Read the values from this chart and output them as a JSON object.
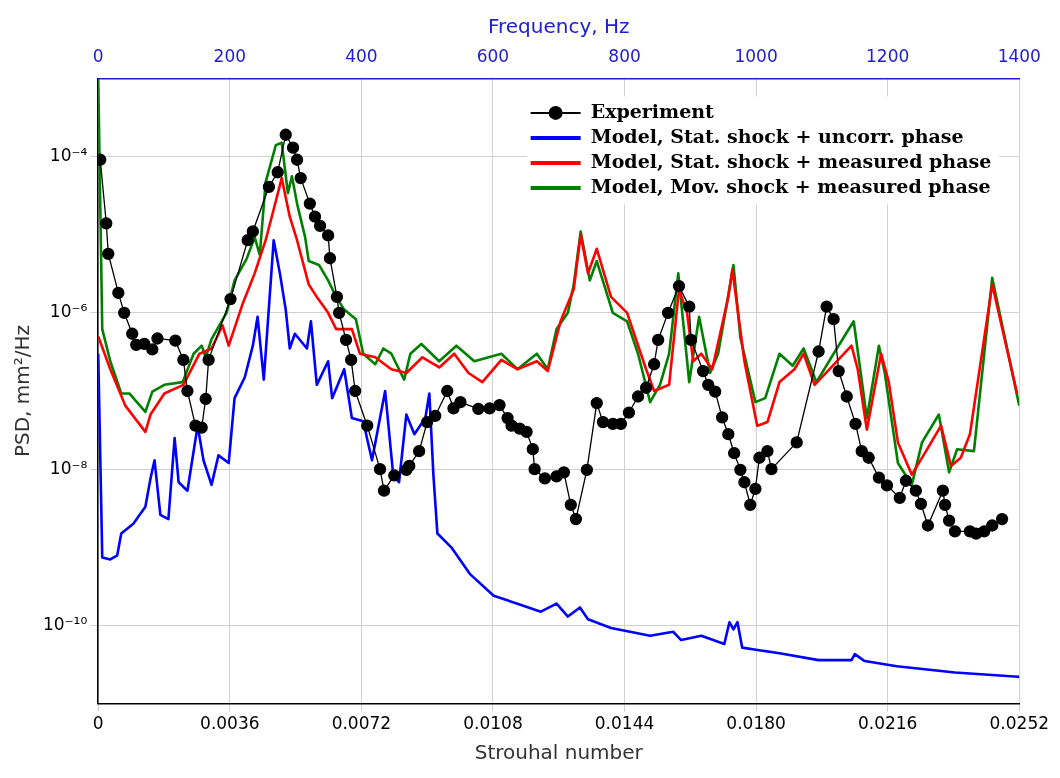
{
  "chart_data": {
    "type": "line",
    "xlabel": "Strouhal number",
    "ylabel": "PSD, mm²/Hz",
    "x2label": "Frequency, Hz",
    "xlim": [
      0,
      0.0252
    ],
    "xticks": [
      0,
      0.0036,
      0.0072,
      0.0108,
      0.0144,
      {
        "value": 0.018,
        "label": "0.0180"
      },
      0.0216,
      0.0252
    ],
    "x2lim": [
      0,
      1400
    ],
    "x2ticks": [
      0,
      200,
      400,
      600,
      800,
      1000,
      1200,
      1400
    ],
    "ylim": [
      1e-11,
      0.001
    ],
    "yticks": [
      {
        "value": 1e-10,
        "label": "10⁻¹⁰"
      },
      {
        "value": 1e-08,
        "label": "10⁻⁸"
      },
      {
        "value": 1e-06,
        "label": "10⁻⁶"
      },
      {
        "value": 0.0001,
        "label": "10⁻⁴"
      }
    ],
    "log": "y",
    "grid": true,
    "legend": "top right",
    "line_style": "solid",
    "series": [
      {
        "name": "Experiment",
        "color": "#000000",
        "marker": "circle",
        "x": [
          5.5e-05,
          0.00022,
          0.000275,
          0.00055,
          0.00071,
          0.00093,
          0.00104,
          0.00126,
          0.00148,
          0.00162,
          0.00211,
          0.00233,
          0.00244,
          0.00266,
          0.00283,
          0.00294,
          0.00302,
          0.00362,
          0.00409,
          0.00423,
          0.00467,
          0.00491,
          0.00513,
          0.00533,
          0.00544,
          0.00554,
          0.00579,
          0.00593,
          0.00607,
          0.00629,
          0.00634,
          0.00653,
          0.00659,
          0.00678,
          0.00692,
          0.00703,
          0.00736,
          0.00771,
          0.00782,
          0.0081,
          0.00843,
          0.00851,
          0.00878,
          0.009,
          0.00922,
          0.00955,
          0.00972,
          0.00991,
          0.0104,
          0.01071,
          0.01098,
          0.0112,
          0.01131,
          0.01153,
          0.01172,
          0.01189,
          0.01194,
          0.01222,
          0.01254,
          0.01274,
          0.01293,
          0.01307,
          0.01337,
          0.01364,
          0.01381,
          0.01408,
          0.0143,
          0.01452,
          0.01477,
          0.01499,
          0.01521,
          0.01532,
          0.01559,
          0.01589,
          0.01617,
          0.01622,
          0.01655,
          0.01669,
          0.01688,
          0.01707,
          0.01724,
          0.0174,
          0.01757,
          0.01768,
          0.01784,
          0.01798,
          0.01809,
          0.01831,
          0.01842,
          0.01911,
          0.01971,
          0.01993,
          0.02012,
          0.02026,
          0.02048,
          0.02072,
          0.02089,
          0.02108,
          0.02136,
          0.02158,
          0.02193,
          0.0221,
          0.02237,
          0.02251,
          0.0227,
          0.02311,
          0.02317,
          0.02328,
          0.02344,
          0.02385,
          0.02402,
          0.02424,
          0.02446,
          0.02473
        ],
        "values": [
          9.1e-05,
          1.4e-05,
          5.7e-06,
          1.8e-06,
          1e-06,
          5.4e-07,
          3.9e-07,
          4e-07,
          3.4e-07,
          4.7e-07,
          4.4e-07,
          2.5e-07,
          1e-07,
          3.6e-08,
          3.4e-08,
          7.9e-08,
          2.5e-07,
          1.5e-06,
          8.5e-06,
          1.1e-05,
          4.1e-05,
          6.3e-05,
          0.00019,
          0.00013,
          9.1e-05,
          5.3e-05,
          2.5e-05,
          1.7e-05,
          1.3e-05,
          9.8e-06,
          5e-06,
          1.6e-06,
          1e-06,
          4.5e-07,
          2.5e-07,
          1e-07,
          3.6e-08,
          1e-08,
          5.3e-09,
          8.3e-09,
          9.8e-09,
          1.1e-08,
          1.7e-08,
          4e-08,
          4.8e-08,
          1e-07,
          6e-08,
          7.2e-08,
          5.9e-08,
          6e-08,
          6.6e-08,
          4.5e-08,
          3.6e-08,
          3.3e-08,
          3e-08,
          1.8e-08,
          1e-08,
          7.6e-09,
          8.1e-09,
          9.1e-09,
          3.5e-09,
          2.3e-09,
          9.8e-09,
          7e-08,
          4e-08,
          3.8e-08,
          3.8e-08,
          5.3e-08,
          8.5e-08,
          1.1e-07,
          2.2e-07,
          4.5e-07,
          1e-06,
          2.2e-06,
          1.2e-06,
          4.5e-07,
          1.8e-07,
          1.2e-07,
          9.8e-08,
          4.6e-08,
          2.8e-08,
          1.6e-08,
          9.8e-09,
          6.8e-09,
          3.5e-09,
          5.6e-09,
          1.4e-08,
          1.7e-08,
          1e-08,
          2.2e-08,
          3.2e-07,
          1.2e-06,
          8.3e-07,
          1.8e-07,
          8.5e-08,
          3.8e-08,
          1.7e-08,
          1.4e-08,
          7.8e-09,
          6.2e-09,
          4.3e-09,
          7.1e-09,
          5.3e-09,
          3.6e-09,
          1.9e-09,
          5.3e-09,
          3.5e-09,
          2.2e-09,
          1.6e-09,
          1.6e-09,
          1.5e-09,
          1.6e-09,
          1.9e-09,
          2.3e-09
        ]
      },
      {
        "name": "Model, Stat. shock + uncorr. phase",
        "color": "#0000ff",
        "marker": "none",
        "x": [
          0,
          0.00011,
          0.00033,
          0.00052,
          0.00063,
          0.00096,
          0.00129,
          0.00143,
          0.00154,
          0.0017,
          0.00192,
          0.00209,
          0.0022,
          0.00244,
          0.00272,
          0.00288,
          0.0031,
          0.00329,
          0.00357,
          0.00373,
          0.00401,
          0.00423,
          0.00436,
          0.00453,
          0.0048,
          0.00497,
          0.00513,
          0.00524,
          0.00538,
          0.00571,
          0.00582,
          0.00598,
          0.00629,
          0.0064,
          0.00673,
          0.00694,
          0.00725,
          0.00749,
          0.00785,
          0.00807,
          0.00823,
          0.00843,
          0.00865,
          0.00895,
          0.00906,
          0.00917,
          0.00928,
          0.00966,
          0.01018,
          0.01082,
          0.01147,
          0.01211,
          0.01254,
          0.01285,
          0.01318,
          0.0134,
          0.01403,
          0.0151,
          0.01573,
          0.01595,
          0.0165,
          0.01713,
          0.01727,
          0.01738,
          0.01749,
          0.01762,
          0.01864,
          0.01971,
          0.02061,
          0.0207,
          0.02097,
          0.02185,
          0.02344,
          0.0252
        ],
        "values": [
          3e-07,
          7.4e-10,
          7e-10,
          7.9e-10,
          1.5e-09,
          2e-09,
          3.3e-09,
          7.6e-09,
          1.3e-08,
          2.6e-09,
          2.3e-09,
          2.5e-08,
          6.8e-09,
          5.3e-09,
          3.6e-08,
          1.3e-08,
          6.3e-09,
          1.5e-08,
          1.2e-08,
          8.1e-08,
          1.5e-07,
          3.8e-07,
          8.9e-07,
          1.4e-07,
          8.5e-06,
          3.2e-06,
          1.1e-06,
          3.5e-07,
          5.4e-07,
          3.5e-07,
          7.8e-07,
          1.2e-07,
          2.4e-07,
          8.1e-08,
          1.9e-07,
          4.5e-08,
          4.1e-08,
          1.3e-08,
          1e-07,
          8.5e-09,
          6.8e-09,
          5e-08,
          2.8e-08,
          4.5e-08,
          9.3e-08,
          8.5e-09,
          1.5e-09,
          1e-09,
          4.5e-10,
          2.4e-10,
          1.9e-10,
          1.5e-10,
          1.9e-10,
          1.3e-10,
          1.7e-10,
          1.2e-10,
          9.3e-11,
          7.4e-11,
          8.3e-11,
          6.5e-11,
          7.4e-11,
          5.8e-11,
          1.1e-10,
          8.9e-11,
          1.1e-10,
          5.2e-11,
          4.4e-11,
          3.6e-11,
          3.6e-11,
          4.3e-11,
          3.5e-11,
          3e-11,
          2.5e-11,
          2.2e-11
        ]
      },
      {
        "name": "Model, Stat. shock + measured phase",
        "color": "#ff0000",
        "marker": "none",
        "x": [
          0,
          0.00033,
          0.00074,
          0.00129,
          0.00143,
          0.00181,
          0.00233,
          0.00277,
          0.0031,
          0.0034,
          0.00357,
          0.00395,
          0.00428,
          0.00458,
          0.00486,
          0.00502,
          0.00524,
          0.00544,
          0.00576,
          0.00598,
          0.00629,
          0.00651,
          0.00694,
          0.00716,
          0.00758,
          0.00802,
          0.00843,
          0.00887,
          0.00933,
          0.00974,
          0.01013,
          0.01051,
          0.01103,
          0.01147,
          0.012,
          0.0123,
          0.01265,
          0.01301,
          0.0132,
          0.0134,
          0.01364,
          0.01403,
          0.01447,
          0.01499,
          0.01521,
          0.01562,
          0.01589,
          0.01611,
          0.01628,
          0.0165,
          0.0168,
          0.01724,
          0.01735,
          0.01768,
          0.01803,
          0.01831,
          0.01864,
          0.01905,
          0.0193,
          0.0196,
          0.02001,
          0.02061,
          0.02078,
          0.02103,
          0.02142,
          0.02163,
          0.02188,
          0.02226,
          0.02265,
          0.02306,
          0.02333,
          0.0236,
          0.02385,
          0.02446,
          0.02514
        ],
        "values": [
          5e-07,
          1.9e-07,
          6.5e-08,
          3e-08,
          5e-08,
          9.3e-08,
          1.2e-07,
          3e-07,
          3.5e-07,
          6.9e-07,
          3.8e-07,
          1.3e-06,
          3.2e-06,
          8.5e-06,
          2.7e-05,
          5.3e-05,
          1.7e-05,
          8.5e-06,
          2.3e-06,
          1.6e-06,
          1e-06,
          6.2e-07,
          6.2e-07,
          3e-07,
          2.7e-07,
          1.9e-07,
          1.7e-07,
          2.7e-07,
          2e-07,
          3e-07,
          1.7e-07,
          1.3e-07,
          2.5e-07,
          1.9e-07,
          2.4e-07,
          1.8e-07,
          7.8e-07,
          2e-06,
          1e-05,
          3.2e-06,
          6.6e-06,
          1.6e-06,
          1e-06,
          1.9e-07,
          1e-07,
          1.2e-07,
          2e-06,
          1e-06,
          2.4e-07,
          3e-07,
          1.9e-07,
          1.6e-06,
          3.6e-06,
          2.4e-07,
          3.6e-08,
          4e-08,
          1.3e-07,
          1.9e-07,
          3e-07,
          1.2e-07,
          1.9e-07,
          3.8e-07,
          1.9e-07,
          3.2e-08,
          3e-07,
          1.3e-07,
          2.2e-08,
          8.5e-09,
          1.7e-08,
          3.6e-08,
          1.1e-08,
          1.4e-08,
          2.8e-08,
          2.3e-06,
          9.3e-08
        ]
      },
      {
        "name": "Model, Mov. shock + measured phase",
        "color": "#008000",
        "marker": "none",
        "x": [
          0,
          0.00011,
          0.00033,
          0.00063,
          0.00085,
          0.00129,
          0.00148,
          0.00181,
          0.00231,
          0.00261,
          0.00283,
          0.00294,
          0.0031,
          0.00351,
          0.00373,
          0.00406,
          0.00428,
          0.00442,
          0.00458,
          0.00486,
          0.00502,
          0.00519,
          0.0053,
          0.00544,
          0.00566,
          0.00576,
          0.00604,
          0.00629,
          0.00651,
          0.00673,
          0.00705,
          0.00725,
          0.00758,
          0.0078,
          0.00802,
          0.00837,
          0.00854,
          0.00884,
          0.00933,
          0.0098,
          0.01029,
          0.01103,
          0.01147,
          0.012,
          0.0123,
          0.01254,
          0.01285,
          0.01301,
          0.0132,
          0.01345,
          0.01364,
          0.01408,
          0.01447,
          0.01477,
          0.0151,
          0.01537,
          0.01562,
          0.01587,
          0.01617,
          0.01644,
          0.01674,
          0.01696,
          0.01721,
          0.01738,
          0.01757,
          0.01798,
          0.01825,
          0.01864,
          0.019,
          0.0193,
          0.01965,
          0.02012,
          0.02067,
          0.02103,
          0.02136,
          0.02152,
          0.02188,
          0.02226,
          0.02254,
          0.023,
          0.02328,
          0.0235,
          0.02396,
          0.02446,
          0.0252
        ],
        "values": [
          0.001,
          6.2e-07,
          2.4e-07,
          9.3e-08,
          9.3e-08,
          5.4e-08,
          9.8e-08,
          1.2e-07,
          1.3e-07,
          3e-07,
          3.8e-07,
          2.7e-07,
          4.6e-07,
          1e-06,
          2.6e-06,
          4.9e-06,
          9.3e-06,
          5.5e-06,
          4.7e-05,
          0.00014,
          0.00015,
          3.4e-05,
          5.6e-05,
          2.5e-05,
          9.3e-06,
          4.6e-06,
          4.1e-06,
          2.6e-06,
          1.6e-06,
          1.1e-06,
          8.3e-07,
          3e-07,
          2.2e-07,
          3.5e-07,
          3e-07,
          1.4e-07,
          3e-07,
          4e-07,
          2.4e-07,
          3.8e-07,
          2.4e-07,
          3e-07,
          1.9e-07,
          3e-07,
          1.9e-07,
          6.2e-07,
          1e-06,
          2.3e-06,
          1.1e-05,
          2.6e-06,
          4.6e-06,
          1e-06,
          7.8e-07,
          3e-07,
          7.2e-08,
          1.2e-07,
          3e-07,
          3.2e-06,
          1.3e-07,
          8.9e-07,
          1.7e-07,
          3e-07,
          1.4e-06,
          4.1e-06,
          4.8e-07,
          7.2e-08,
          8.1e-08,
          3e-07,
          2.1e-07,
          3.5e-07,
          1.3e-07,
          3e-07,
          7.8e-07,
          4.5e-08,
          3.8e-07,
          1.7e-07,
          1.2e-08,
          6.3e-09,
          2.2e-08,
          5e-08,
          9.1e-09,
          1.8e-08,
          1.7e-08,
          2.8e-06,
          6.5e-08
        ]
      }
    ]
  }
}
